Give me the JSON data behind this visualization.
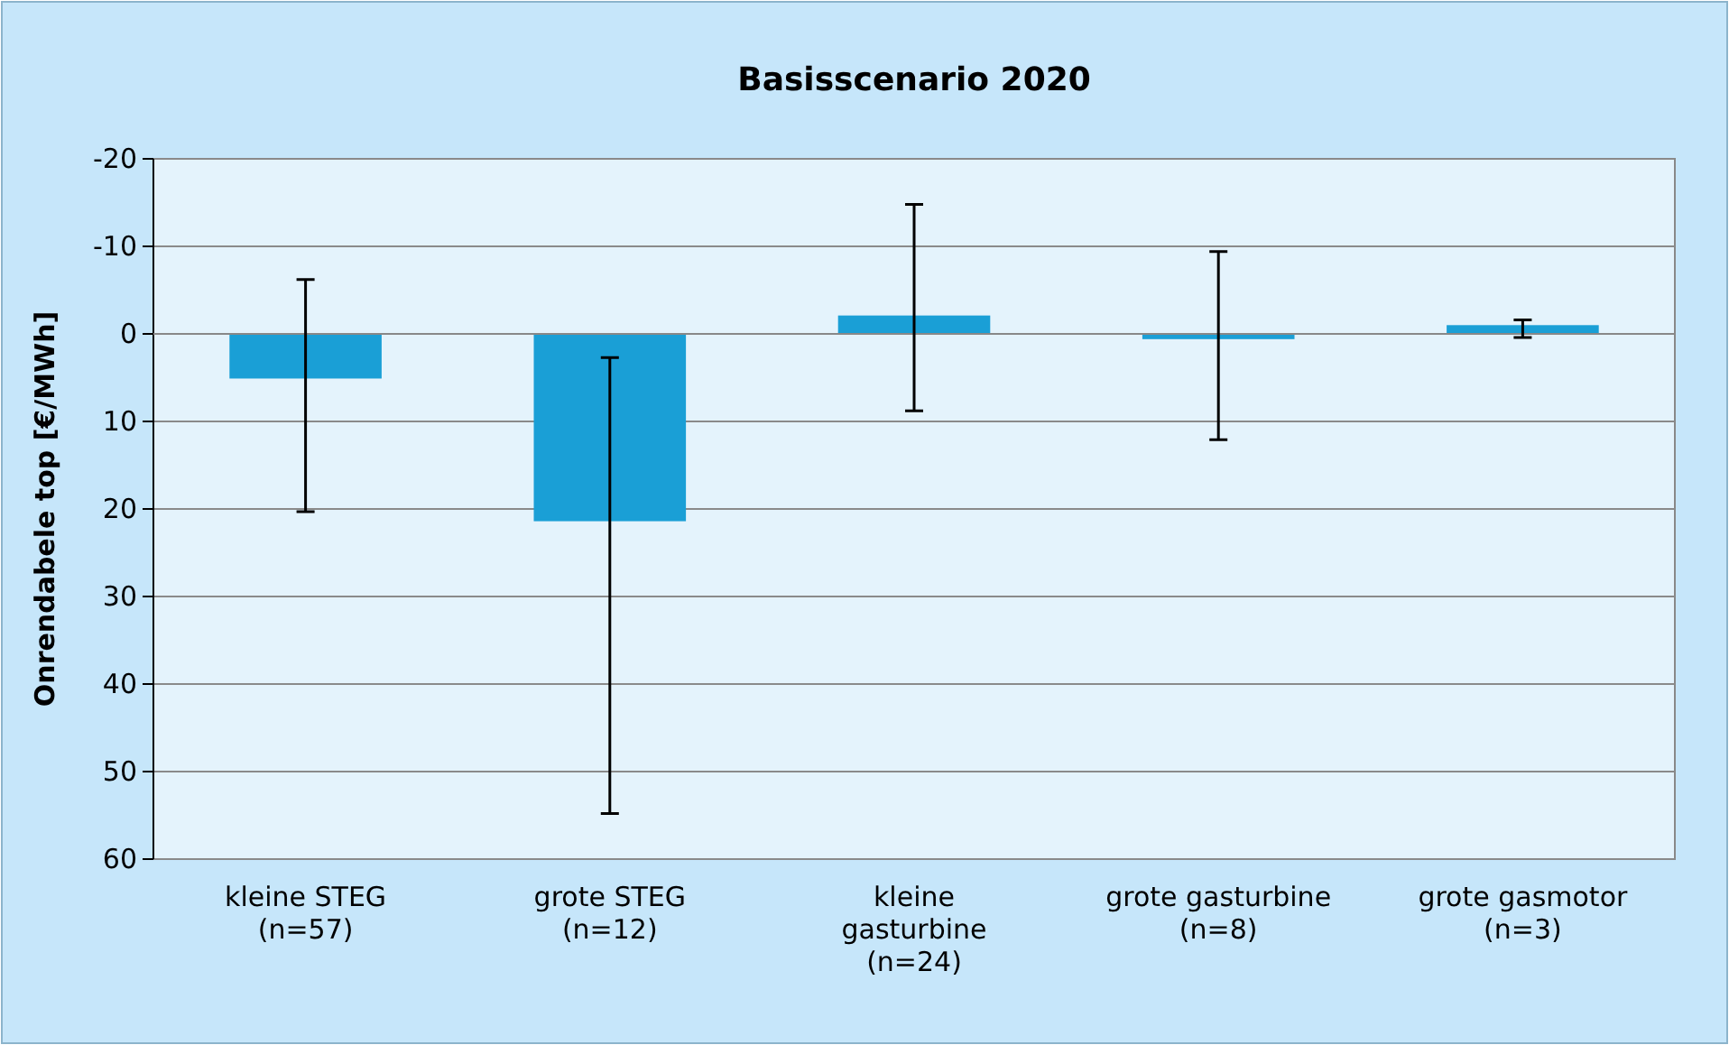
{
  "chart_data": {
    "type": "bar",
    "title": "Basisscenario 2020",
    "ylabel": "Onrendabele top [€/MWh]",
    "categories": [
      "kleine STEG\n(n=57)",
      "grote STEG\n(n=12)",
      "kleine\ngasturbine\n(n=24)",
      "grote gasturbine\n(n=8)",
      "grote gasmotor\n(n=3)"
    ],
    "values": [
      5.1,
      21.4,
      -2.1,
      0.6,
      -1.0
    ],
    "errors": [
      [
        -6.2,
        20.3
      ],
      [
        2.7,
        54.8
      ],
      [
        -14.8,
        8.8
      ],
      [
        -9.4,
        12.1
      ],
      [
        -1.6,
        0.4
      ]
    ],
    "color": "#1a9fd6",
    "ylim": [
      60,
      -20
    ],
    "yticks": [
      60,
      50,
      40,
      30,
      20,
      10,
      0,
      -10,
      -20
    ],
    "grid": "y"
  }
}
